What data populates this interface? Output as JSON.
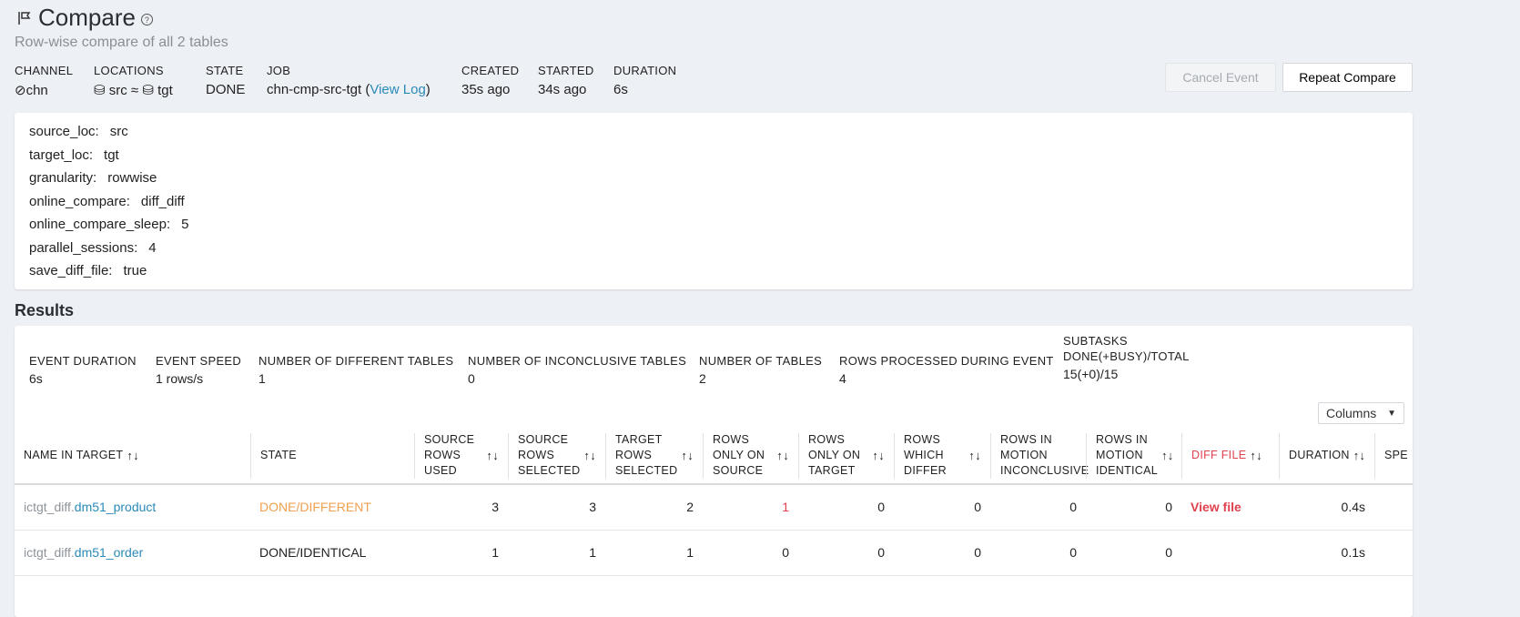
{
  "header": {
    "title": "Compare",
    "subtitle": "Row-wise compare of all 2 tables",
    "icon": "flag-icon"
  },
  "meta": [
    {
      "key": "CHANNEL",
      "value": "chn",
      "icon": "channel-icon"
    },
    {
      "key": "LOCATIONS",
      "src": "src",
      "sep": "≈",
      "tgt": "tgt",
      "icon": "database-icon"
    },
    {
      "key": "STATE",
      "value": "DONE"
    },
    {
      "key": "JOB",
      "value": "chn-cmp-src-tgt",
      "link": "View Log"
    },
    {
      "key": "CREATED",
      "value": "35s ago"
    },
    {
      "key": "STARTED",
      "value": "34s ago"
    },
    {
      "key": "DURATION",
      "value": "6s"
    }
  ],
  "buttons": {
    "cancel": "Cancel Event",
    "repeat": "Repeat Compare"
  },
  "params": [
    {
      "k": "source_loc:",
      "v": "src"
    },
    {
      "k": "target_loc:",
      "v": "tgt"
    },
    {
      "k": "granularity:",
      "v": "rowwise"
    },
    {
      "k": "online_compare:",
      "v": "diff_diff"
    },
    {
      "k": "online_compare_sleep:",
      "v": "5"
    },
    {
      "k": "parallel_sessions:",
      "v": "4"
    },
    {
      "k": "save_diff_file:",
      "v": "true"
    }
  ],
  "results": {
    "title": "Results",
    "stats": [
      {
        "k": "EVENT DURATION",
        "v": "6s"
      },
      {
        "k": "EVENT SPEED",
        "v": "1 rows/s"
      },
      {
        "k": "NUMBER OF DIFFERENT TABLES",
        "v": "1"
      },
      {
        "k": "NUMBER OF INCONCLUSIVE TABLES",
        "v": "0"
      },
      {
        "k": "NUMBER OF TABLES",
        "v": "2"
      },
      {
        "k": "ROWS PROCESSED DURING EVENT",
        "v": "4"
      },
      {
        "k": "SUBTASKS DONE(+BUSY)/TOTAL",
        "v": "15(+0)/15"
      }
    ],
    "columns_button": "Columns",
    "headers": [
      "NAME IN TARGET",
      "STATE",
      "SOURCE ROWS USED",
      "SOURCE ROWS SELECTED",
      "TARGET ROWS SELECTED",
      "ROWS ONLY ON SOURCE",
      "ROWS ONLY ON TARGET",
      "ROWS WHICH DIFFER",
      "ROWS IN MOTION INCONCLUSIVE",
      "ROWS IN MOTION IDENTICAL",
      "DIFF FILE",
      "DURATION",
      "SPE"
    ],
    "rows": [
      {
        "schema": "ictgt_diff.",
        "table": "dm51_product",
        "state": "DONE/DIFFERENT",
        "vals": [
          "3",
          "3",
          "2",
          "1",
          "0",
          "0",
          "0",
          "0"
        ],
        "diff": "View file",
        "duration": "0.4s"
      },
      {
        "schema": "ictgt_diff.",
        "table": "dm51_order",
        "state": "DONE/IDENTICAL",
        "vals": [
          "1",
          "1",
          "1",
          "0",
          "0",
          "0",
          "0",
          "0"
        ],
        "diff": "",
        "duration": "0.1s"
      }
    ]
  },
  "colors": {
    "accent": "#2a8ab8",
    "different": "#f0a050",
    "diff": "#e0414f"
  }
}
